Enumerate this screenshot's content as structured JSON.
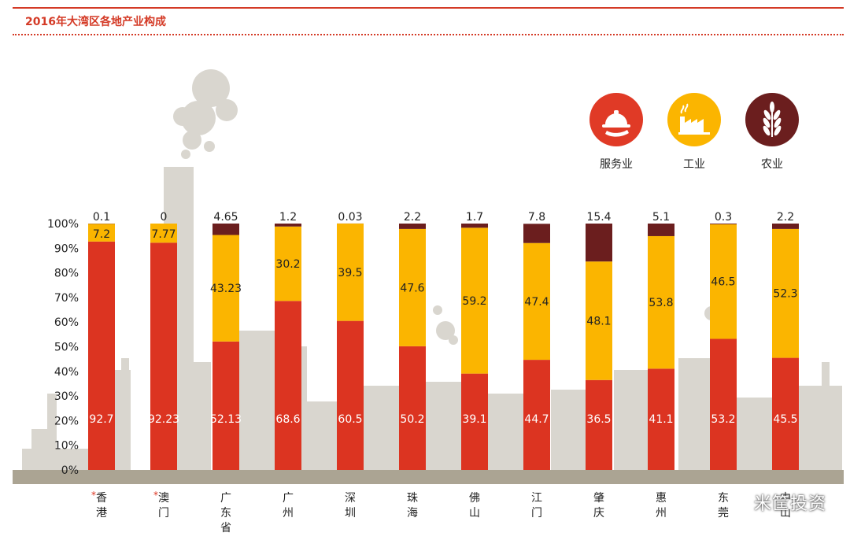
{
  "chart_data": {
    "type": "bar",
    "stacked": true,
    "title": "2016年大湾区各地产业构成",
    "categories": [
      {
        "label": "香港",
        "marked": true
      },
      {
        "label": "澳门",
        "marked": true
      },
      {
        "label": "广东省",
        "marked": false
      },
      {
        "label": "广州",
        "marked": false
      },
      {
        "label": "深圳",
        "marked": false
      },
      {
        "label": "珠海",
        "marked": false
      },
      {
        "label": "佛山",
        "marked": false
      },
      {
        "label": "江门",
        "marked": false
      },
      {
        "label": "肇庆",
        "marked": false
      },
      {
        "label": "惠州",
        "marked": false
      },
      {
        "label": "东莞",
        "marked": false
      },
      {
        "label": "中山",
        "marked": false
      }
    ],
    "series": [
      {
        "name": "服务业",
        "color": "#dc3421",
        "values": [
          92.7,
          92.23,
          52.13,
          68.6,
          60.5,
          50.2,
          39.1,
          44.7,
          36.5,
          41.1,
          53.2,
          45.5
        ],
        "labels": [
          "92.7",
          "92.23",
          "52.13",
          "68.6",
          "60.5",
          "50.2",
          "39.1",
          "44.7",
          "36.5",
          "41.1",
          "53.2",
          "45.5"
        ]
      },
      {
        "name": "工业",
        "color": "#fbb500",
        "values": [
          7.2,
          7.77,
          43.23,
          30.2,
          39.5,
          47.6,
          59.2,
          47.4,
          48.1,
          53.8,
          46.5,
          52.3
        ],
        "labels": [
          "7.2",
          "7.77",
          "43.23",
          "30.2",
          "39.5",
          "47.6",
          "59.2",
          "47.4",
          "48.1",
          "53.8",
          "46.5",
          "52.3"
        ]
      },
      {
        "name": "农业",
        "color": "#6b1e1e",
        "values": [
          0.1,
          0,
          4.65,
          1.2,
          0.03,
          2.2,
          1.7,
          7.8,
          15.4,
          5.1,
          0.3,
          2.2
        ],
        "labels": [
          "0.1",
          "0",
          "4.65",
          "1.2",
          "0.03",
          "2.2",
          "1.7",
          "7.8",
          "15.4",
          "5.1",
          "0.3",
          "2.2"
        ]
      }
    ],
    "yticks": [
      "0%",
      "10%",
      "20%",
      "30%",
      "40%",
      "50%",
      "60%",
      "70%",
      "80%",
      "90%",
      "100%"
    ],
    "ylim": [
      0,
      100
    ],
    "marker": "*",
    "legend_position": "top-right"
  },
  "legend": [
    {
      "label": "服务业",
      "icon": "serving-cloche-icon",
      "color": "#e03a26"
    },
    {
      "label": "工业",
      "icon": "factory-icon",
      "color": "#fbb500"
    },
    {
      "label": "农业",
      "icon": "wheat-icon",
      "color": "#6b1e1e"
    }
  ],
  "watermark": "米筐投资"
}
